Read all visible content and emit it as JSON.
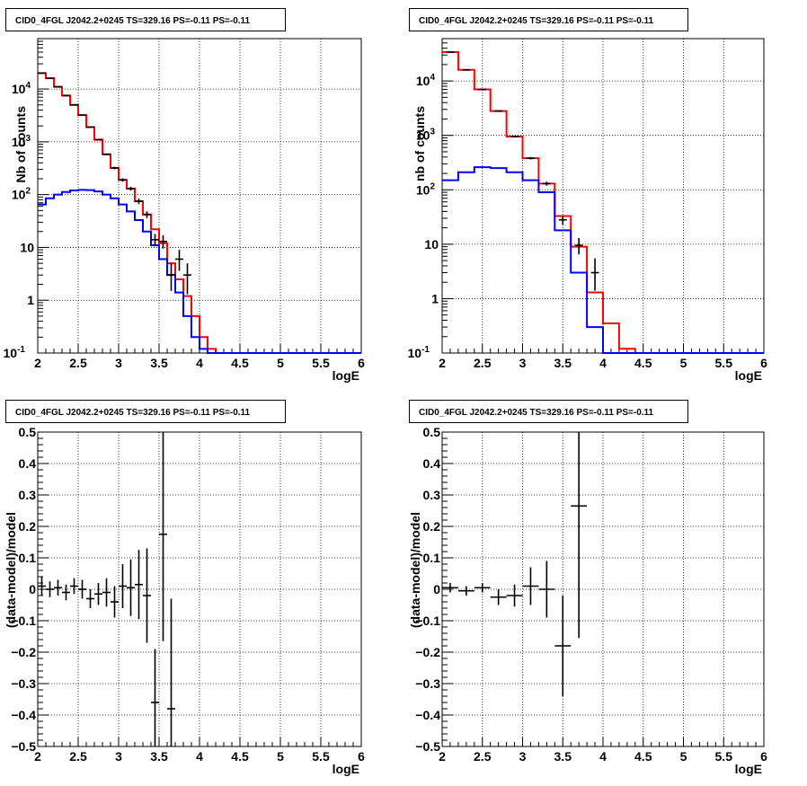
{
  "chart_data": [
    {
      "type": "histogram",
      "title": "CID0_4FGL J2042.2+0245 TS=329.16 PS=-0.11 PS=-0.11",
      "xlabel": "logE",
      "ylabel": "Nb of counts",
      "yscale": "log",
      "xlim": [
        2,
        6
      ],
      "ylim": [
        0.1,
        90000
      ],
      "grid": true,
      "x_ticks": [
        "2",
        "2.5",
        "3",
        "3.5",
        "4",
        "4.5",
        "5",
        "5.5",
        "6"
      ],
      "y_ticks": [
        {
          "value": 0.1,
          "base": "10",
          "exp": "-1"
        },
        {
          "value": 1,
          "label": "1"
        },
        {
          "value": 10,
          "label": "10"
        },
        {
          "value": 100,
          "base": "10",
          "exp": "2"
        },
        {
          "value": 1000,
          "base": "10",
          "exp": "3"
        },
        {
          "value": 10000,
          "base": "10",
          "exp": "4"
        }
      ],
      "bin_edges": [
        2.0,
        2.1,
        2.2,
        2.3,
        2.4,
        2.5,
        2.6,
        2.7,
        2.8,
        2.9,
        3.0,
        3.1,
        3.2,
        3.3,
        3.4,
        3.5,
        3.6,
        3.7,
        3.8,
        3.9,
        4.0,
        4.1,
        4.2,
        4.3,
        4.4,
        4.5,
        4.6,
        4.7,
        4.8,
        4.9,
        5.0,
        5.1,
        5.2,
        5.3,
        5.4,
        5.5,
        5.6,
        5.7,
        5.8,
        5.9,
        6.0
      ],
      "series": [
        {
          "color": "#ff0000",
          "values": [
            20000,
            16000,
            11000,
            7500,
            5000,
            3200,
            1900,
            1100,
            580,
            320,
            190,
            130,
            75,
            42,
            22,
            12,
            5,
            2.5,
            1.2,
            0.5,
            0.2,
            0.12,
            0,
            0,
            0,
            0,
            0,
            0,
            0,
            0,
            0,
            0,
            0,
            0,
            0,
            0,
            0,
            0,
            0,
            0
          ]
        },
        {
          "color": "#0000ff",
          "values": [
            65,
            85,
            100,
            112,
            120,
            123,
            122,
            115,
            100,
            85,
            65,
            48,
            33,
            20,
            11,
            6,
            3,
            1.4,
            0.5,
            0.2,
            0.12,
            0.1,
            0.1,
            0.1,
            0.1,
            0.1,
            0.1,
            0.1,
            0.1,
            0.1,
            0.1,
            0.1,
            0.1,
            0.1,
            0.1,
            0.1,
            0.1,
            0.1,
            0.1,
            0.1
          ]
        }
      ],
      "points": [
        {
          "x": 2.05,
          "y": 20000,
          "ylo": 19860,
          "yhi": 20140
        },
        {
          "x": 2.15,
          "y": 16000,
          "ylo": 15870,
          "yhi": 16130
        },
        {
          "x": 2.25,
          "y": 11000,
          "ylo": 10890,
          "yhi": 11110
        },
        {
          "x": 2.35,
          "y": 7500,
          "ylo": 7410,
          "yhi": 7590
        },
        {
          "x": 2.45,
          "y": 5000,
          "ylo": 4930,
          "yhi": 5070
        },
        {
          "x": 2.55,
          "y": 3200,
          "ylo": 3140,
          "yhi": 3260
        },
        {
          "x": 2.65,
          "y": 1900,
          "ylo": 1850,
          "yhi": 1950
        },
        {
          "x": 2.75,
          "y": 1100,
          "ylo": 1070,
          "yhi": 1130
        },
        {
          "x": 2.85,
          "y": 580,
          "ylo": 560,
          "yhi": 600
        },
        {
          "x": 2.95,
          "y": 320,
          "ylo": 302,
          "yhi": 338
        },
        {
          "x": 3.05,
          "y": 190,
          "ylo": 176,
          "yhi": 204
        },
        {
          "x": 3.15,
          "y": 130,
          "ylo": 119,
          "yhi": 141
        },
        {
          "x": 3.25,
          "y": 75,
          "ylo": 66,
          "yhi": 84
        },
        {
          "x": 3.35,
          "y": 42,
          "ylo": 36,
          "yhi": 48
        },
        {
          "x": 3.45,
          "y": 14,
          "ylo": 10.5,
          "yhi": 18
        },
        {
          "x": 3.55,
          "y": 13,
          "ylo": 9.5,
          "yhi": 17
        },
        {
          "x": 3.65,
          "y": 3,
          "ylo": 1.5,
          "yhi": 5
        },
        {
          "x": 3.75,
          "y": 6,
          "ylo": 3.6,
          "yhi": 9
        },
        {
          "x": 3.85,
          "y": 3,
          "ylo": 1.3,
          "yhi": 5
        }
      ]
    },
    {
      "type": "histogram",
      "title": "CID0_4FGL J2042.2+0245 TS=329.16 PS=-0.11 PS=-0.11",
      "xlabel": "logE",
      "ylabel": "nb of counts",
      "yscale": "log",
      "xlim": [
        2,
        6
      ],
      "ylim": [
        0.1,
        60000
      ],
      "grid": true,
      "x_ticks": [
        "2",
        "2.5",
        "3",
        "3.5",
        "4",
        "4.5",
        "5",
        "5.5",
        "6"
      ],
      "y_ticks": [
        {
          "value": 0.1,
          "base": "10",
          "exp": "-1"
        },
        {
          "value": 1,
          "label": "1"
        },
        {
          "value": 10,
          "label": "10"
        },
        {
          "value": 100,
          "base": "10",
          "exp": "2"
        },
        {
          "value": 1000,
          "base": "10",
          "exp": "3"
        },
        {
          "value": 10000,
          "base": "10",
          "exp": "4"
        }
      ],
      "bin_edges": [
        2.0,
        2.2,
        2.4,
        2.6,
        2.8,
        3.0,
        3.2,
        3.4,
        3.6,
        3.8,
        4.0,
        4.2,
        4.4,
        4.6,
        4.8,
        5.0,
        5.2,
        5.4,
        5.6,
        5.8,
        6.0
      ],
      "series": [
        {
          "color": "#ff0000",
          "values": [
            34000,
            16000,
            7000,
            2800,
            950,
            380,
            130,
            33,
            9,
            1.3,
            0.35,
            0.12,
            0,
            0,
            0,
            0,
            0,
            0,
            0,
            0
          ]
        },
        {
          "color": "#0000ff",
          "values": [
            150,
            210,
            260,
            250,
            210,
            150,
            90,
            18,
            3,
            0.3,
            0.1,
            0.1,
            0.1,
            0.1,
            0.1,
            0.1,
            0.1,
            0.1,
            0.1,
            0.1
          ]
        }
      ],
      "points": [
        {
          "x": 2.1,
          "y": 34000,
          "ylo": 33800,
          "yhi": 34200
        },
        {
          "x": 2.3,
          "y": 16000,
          "ylo": 15870,
          "yhi": 16130
        },
        {
          "x": 2.5,
          "y": 7000,
          "ylo": 6910,
          "yhi": 7090
        },
        {
          "x": 2.7,
          "y": 2800,
          "ylo": 2750,
          "yhi": 2850
        },
        {
          "x": 2.9,
          "y": 950,
          "ylo": 920,
          "yhi": 980
        },
        {
          "x": 3.1,
          "y": 380,
          "ylo": 360,
          "yhi": 400
        },
        {
          "x": 3.3,
          "y": 130,
          "ylo": 119,
          "yhi": 141
        },
        {
          "x": 3.5,
          "y": 28,
          "ylo": 23,
          "yhi": 33
        },
        {
          "x": 3.7,
          "y": 9.5,
          "ylo": 6.5,
          "yhi": 13
        },
        {
          "x": 3.9,
          "y": 3,
          "ylo": 1.4,
          "yhi": 5.5
        }
      ]
    },
    {
      "type": "scatter",
      "title": "CID0_4FGL J2042.2+0245 TS=329.16 PS=-0.11 PS=-0.11",
      "xlabel": "logE",
      "ylabel": "(data-model)/model",
      "xlim": [
        2,
        6
      ],
      "ylim": [
        -0.5,
        0.5
      ],
      "grid": true,
      "x_ticks": [
        "2",
        "2.5",
        "3",
        "3.5",
        "4",
        "4.5",
        "5",
        "5.5",
        "6"
      ],
      "y_ticks": [
        "-0.5",
        "-0.4",
        "-0.3",
        "-0.2",
        "-0.1",
        "0",
        "0.1",
        "0.2",
        "0.3",
        "0.4",
        "0.5"
      ],
      "xerr": 0.05,
      "points": [
        {
          "x": 2.05,
          "y": 0.01,
          "err": 0.03
        },
        {
          "x": 2.15,
          "y": 0.0,
          "err": 0.025
        },
        {
          "x": 2.25,
          "y": 0.005,
          "err": 0.025
        },
        {
          "x": 2.35,
          "y": -0.01,
          "err": 0.025
        },
        {
          "x": 2.45,
          "y": 0.01,
          "err": 0.025
        },
        {
          "x": 2.55,
          "y": 0.0,
          "err": 0.03
        },
        {
          "x": 2.65,
          "y": -0.03,
          "err": 0.03
        },
        {
          "x": 2.75,
          "y": -0.015,
          "err": 0.035
        },
        {
          "x": 2.85,
          "y": -0.01,
          "err": 0.045
        },
        {
          "x": 2.95,
          "y": -0.04,
          "err": 0.05
        },
        {
          "x": 3.05,
          "y": 0.01,
          "err": 0.07
        },
        {
          "x": 3.15,
          "y": 0.005,
          "err": 0.09
        },
        {
          "x": 3.25,
          "y": 0.015,
          "err": 0.11
        },
        {
          "x": 3.35,
          "y": -0.02,
          "err": 0.15
        },
        {
          "x": 3.45,
          "y": -0.36,
          "err": 0.17
        },
        {
          "x": 3.55,
          "y": 0.175,
          "err": 0.34
        },
        {
          "x": 3.65,
          "y": -0.38,
          "err": 0.35
        }
      ]
    },
    {
      "type": "scatter",
      "title": "CID0_4FGL J2042.2+0245 TS=329.16 PS=-0.11 PS=-0.11",
      "xlabel": "logE",
      "ylabel": "(data-model)/model",
      "xlim": [
        2,
        6
      ],
      "ylim": [
        -0.5,
        0.5
      ],
      "grid": true,
      "x_ticks": [
        "2",
        "2.5",
        "3",
        "3.5",
        "4",
        "4.5",
        "5",
        "5.5",
        "6"
      ],
      "y_ticks": [
        "-0.5",
        "-0.4",
        "-0.3",
        "-0.2",
        "-0.1",
        "0",
        "0.1",
        "0.2",
        "0.3",
        "0.4",
        "0.5"
      ],
      "xerr": 0.1,
      "points": [
        {
          "x": 2.1,
          "y": 0.005,
          "err": 0.015
        },
        {
          "x": 2.3,
          "y": -0.005,
          "err": 0.015
        },
        {
          "x": 2.5,
          "y": 0.005,
          "err": 0.015
        },
        {
          "x": 2.7,
          "y": -0.025,
          "err": 0.025
        },
        {
          "x": 2.9,
          "y": -0.02,
          "err": 0.035
        },
        {
          "x": 3.1,
          "y": 0.01,
          "err": 0.06
        },
        {
          "x": 3.3,
          "y": 0.0,
          "err": 0.09
        },
        {
          "x": 3.5,
          "y": -0.18,
          "err": 0.16
        },
        {
          "x": 3.7,
          "y": 0.265,
          "err": 0.42
        }
      ]
    }
  ]
}
